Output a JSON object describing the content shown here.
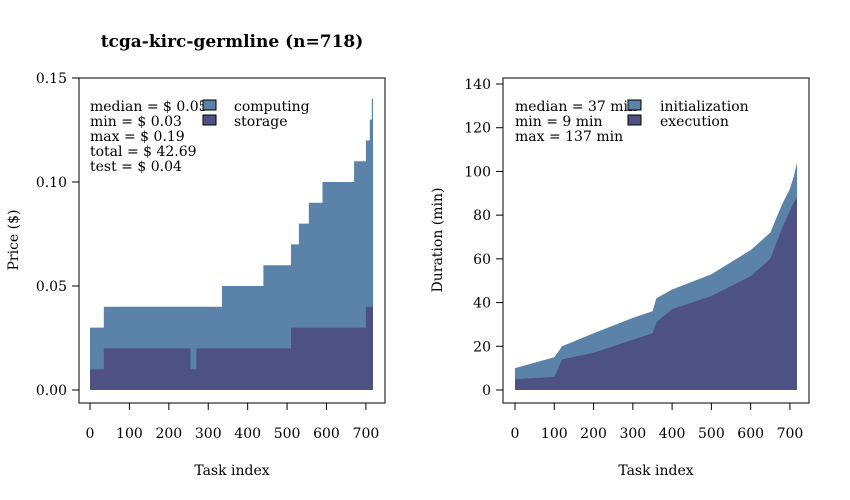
{
  "title": "tcga-kirc-germline  (n=718)",
  "colors": {
    "upper": "#5b82a8",
    "lower": "#4e5183",
    "frame": "#000000"
  },
  "chart_data": [
    {
      "type": "area",
      "xlabel": "Task index",
      "ylabel": "Price ($)",
      "xlim": [
        0,
        718
      ],
      "ylim": [
        0,
        0.19
      ],
      "xticks": [
        "0",
        "100",
        "200",
        "300",
        "400",
        "500",
        "600",
        "700"
      ],
      "yticks": [
        "0.00",
        "0.05",
        "0.10",
        "0.15"
      ],
      "stats": [
        "median = $ 0.05",
        "min = $ 0.03",
        "max = $ 0.19",
        "total = $ 42.69",
        "test = $ 0.04"
      ],
      "legend_position": "top",
      "series": [
        {
          "name": "computing",
          "x": [
            0,
            35,
            335,
            440,
            510,
            530,
            555,
            590,
            670,
            685,
            700,
            710,
            715,
            718
          ],
          "y": [
            0.03,
            0.04,
            0.05,
            0.06,
            0.07,
            0.08,
            0.09,
            0.1,
            0.11,
            0.11,
            0.12,
            0.13,
            0.14,
            0.14
          ]
        },
        {
          "name": "storage",
          "x": [
            0,
            35,
            210,
            255,
            270,
            335,
            440,
            510,
            600,
            690,
            700,
            718
          ],
          "y": [
            0.01,
            0.02,
            0.02,
            0.01,
            0.02,
            0.02,
            0.02,
            0.03,
            0.03,
            0.03,
            0.04,
            0.04
          ]
        }
      ]
    },
    {
      "type": "area",
      "xlabel": "Task index",
      "ylabel": "Duration (min)",
      "xlim": [
        0,
        718
      ],
      "ylim": [
        0,
        140
      ],
      "xticks": [
        "0",
        "100",
        "200",
        "300",
        "400",
        "500",
        "600",
        "700"
      ],
      "yticks": [
        "0",
        "20",
        "40",
        "60",
        "80",
        "100",
        "120",
        "140"
      ],
      "stats": [
        "median =  37 min",
        "min =  9 min",
        "max =  137 min"
      ],
      "legend_position": "top",
      "series": [
        {
          "name": "initialization",
          "x": [
            0,
            100,
            120,
            200,
            300,
            350,
            360,
            400,
            500,
            600,
            650,
            680,
            700,
            710,
            718
          ],
          "y": [
            10,
            15,
            20,
            26,
            33,
            36,
            42,
            46,
            53,
            64,
            72,
            85,
            92,
            98,
            104
          ]
        },
        {
          "name": "execution",
          "x": [
            0,
            100,
            120,
            200,
            300,
            350,
            360,
            400,
            500,
            600,
            650,
            680,
            700,
            710,
            718
          ],
          "y": [
            5,
            6,
            14,
            17,
            23,
            26,
            31,
            37,
            43,
            52,
            60,
            74,
            82,
            86,
            88
          ]
        }
      ]
    }
  ]
}
